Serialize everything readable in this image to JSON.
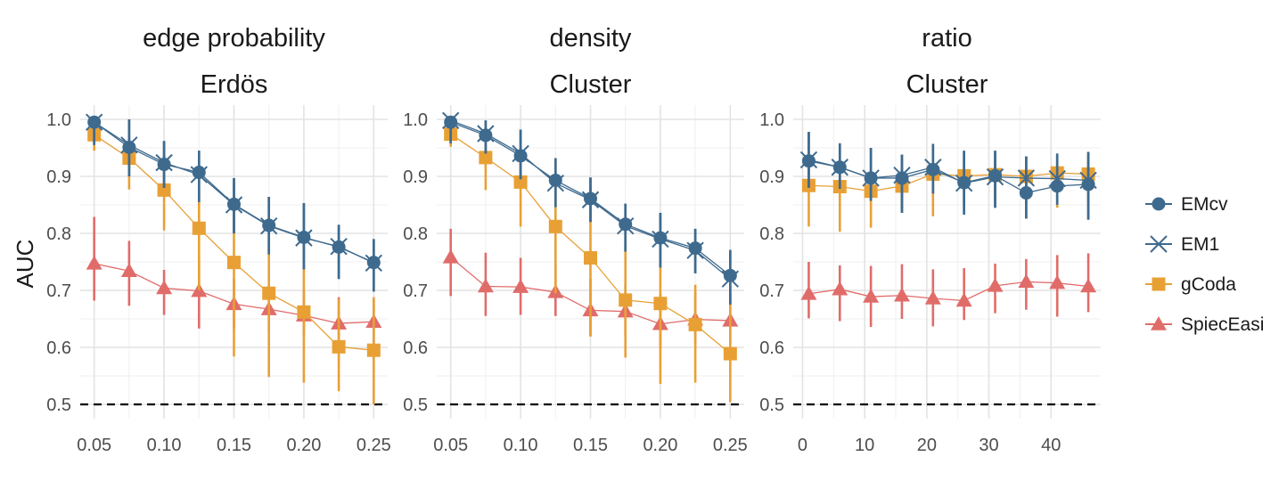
{
  "chart_data": {
    "type": "line",
    "ylabel": "AUC",
    "ylim": [
      0.5,
      1.0
    ],
    "y_ticks": [
      "0.5",
      "0.6",
      "0.7",
      "0.8",
      "0.9",
      "1.0"
    ],
    "reference_line": {
      "y": 0.5,
      "style": "dashed"
    },
    "grid": true,
    "legend_position": "right",
    "series_meta": [
      {
        "name": "EMcv",
        "color": "#3E6A8E",
        "marker": "circle"
      },
      {
        "name": "EM1",
        "color": "#3E6A8E",
        "marker": "x"
      },
      {
        "name": "gCoda",
        "color": "#E8A035",
        "marker": "square"
      },
      {
        "name": "SpiecEasi",
        "color": "#E06C6A",
        "marker": "triangle"
      }
    ],
    "panels": [
      {
        "title_top": "edge probability",
        "title_bottom": "Erdös",
        "xlim": [
          0.04,
          0.26
        ],
        "x_ticks": [
          "0.05",
          "0.10",
          "0.15",
          "0.20",
          "0.25"
        ],
        "x": [
          0.05,
          0.075,
          0.1,
          0.125,
          0.15,
          0.175,
          0.2,
          0.225,
          0.25
        ],
        "series": [
          {
            "name": "EMcv",
            "values": [
              0.995,
              0.951,
              0.921,
              0.907,
              0.851,
              0.814,
              0.793,
              0.776,
              0.749
            ],
            "lower": [
              0.955,
              0.9,
              0.88,
              0.855,
              0.8,
              0.763,
              0.737,
              0.72,
              0.698
            ],
            "upper": [
              1.0,
              1.0,
              0.962,
              0.945,
              0.897,
              0.864,
              0.853,
              0.815,
              0.79
            ]
          },
          {
            "name": "EM1",
            "values": [
              0.995,
              0.955,
              0.924,
              0.903,
              0.85,
              0.813,
              0.792,
              0.777,
              0.748
            ],
            "lower": [
              0.955,
              0.9,
              0.88,
              0.855,
              0.8,
              0.763,
              0.737,
              0.72,
              0.698
            ],
            "upper": [
              1.0,
              1.0,
              0.962,
              0.945,
              0.897,
              0.864,
              0.853,
              0.815,
              0.79
            ]
          },
          {
            "name": "gCoda",
            "values": [
              0.973,
              0.932,
              0.876,
              0.809,
              0.749,
              0.695,
              0.662,
              0.601,
              0.595
            ],
            "lower": [
              0.945,
              0.877,
              0.805,
              0.7,
              0.584,
              0.548,
              0.538,
              0.523,
              0.5
            ],
            "upper": [
              0.99,
              0.965,
              0.935,
              0.88,
              0.84,
              0.792,
              0.746,
              0.685,
              0.688
            ]
          },
          {
            "name": "SpiecEasi",
            "values": [
              0.747,
              0.734,
              0.704,
              0.699,
              0.676,
              0.667,
              0.656,
              0.642,
              0.645
            ],
            "lower": [
              0.682,
              0.673,
              0.657,
              0.633,
              0.633,
              0.627,
              0.62,
              0.6,
              0.6
            ],
            "upper": [
              0.829,
              0.787,
              0.736,
              0.753,
              0.72,
              0.708,
              0.7,
              0.688,
              0.685
            ]
          }
        ]
      },
      {
        "title_top": "density",
        "title_bottom": "Cluster",
        "xlim": [
          0.04,
          0.26
        ],
        "x_ticks": [
          "0.05",
          "0.10",
          "0.15",
          "0.20",
          "0.25"
        ],
        "x": [
          0.05,
          0.075,
          0.1,
          0.125,
          0.15,
          0.175,
          0.2,
          0.225,
          0.25
        ],
        "series": [
          {
            "name": "EMcv",
            "values": [
              0.995,
              0.972,
              0.936,
              0.893,
              0.861,
              0.816,
              0.792,
              0.774,
              0.726
            ],
            "lower": [
              0.958,
              0.94,
              0.895,
              0.846,
              0.82,
              0.768,
              0.74,
              0.73,
              0.675
            ],
            "upper": [
              1.0,
              0.998,
              0.982,
              0.932,
              0.898,
              0.852,
              0.836,
              0.808,
              0.771
            ]
          },
          {
            "name": "EM1",
            "values": [
              0.998,
              0.975,
              0.94,
              0.888,
              0.859,
              0.813,
              0.79,
              0.77,
              0.72
            ],
            "lower": [
              0.958,
              0.94,
              0.895,
              0.846,
              0.82,
              0.768,
              0.74,
              0.73,
              0.675
            ],
            "upper": [
              1.0,
              0.998,
              0.982,
              0.932,
              0.898,
              0.852,
              0.836,
              0.808,
              0.771
            ]
          },
          {
            "name": "gCoda",
            "values": [
              0.974,
              0.933,
              0.89,
              0.812,
              0.757,
              0.683,
              0.677,
              0.64,
              0.589
            ],
            "lower": [
              0.952,
              0.876,
              0.812,
              0.695,
              0.619,
              0.582,
              0.536,
              0.538,
              0.504
            ],
            "upper": [
              0.99,
              0.96,
              0.933,
              0.9,
              0.88,
              0.782,
              0.74,
              0.71,
              0.684
            ]
          },
          {
            "name": "SpiecEasi",
            "values": [
              0.758,
              0.707,
              0.706,
              0.697,
              0.665,
              0.663,
              0.641,
              0.649,
              0.647
            ],
            "lower": [
              0.69,
              0.655,
              0.657,
              0.655,
              0.62,
              0.62,
              0.598,
              0.608,
              0.606
            ],
            "upper": [
              0.808,
              0.766,
              0.757,
              0.745,
              0.72,
              0.712,
              0.695,
              0.697,
              0.694
            ]
          }
        ]
      },
      {
        "title_top": "ratio",
        "title_bottom": "Cluster",
        "xlim": [
          -1.5,
          48
        ],
        "x_ticks": [
          "0",
          "10",
          "20",
          "30",
          "40"
        ],
        "x": [
          1,
          6,
          11,
          16,
          21,
          26,
          31,
          36,
          41,
          46
        ],
        "series": [
          {
            "name": "EMcv",
            "values": [
              0.927,
              0.916,
              0.897,
              0.897,
              0.912,
              0.889,
              0.901,
              0.871,
              0.883,
              0.886
            ],
            "lower": [
              0.88,
              0.878,
              0.857,
              0.836,
              0.87,
              0.833,
              0.845,
              0.826,
              0.85,
              0.824
            ],
            "upper": [
              0.978,
              0.958,
              0.95,
              0.938,
              0.957,
              0.945,
              0.945,
              0.935,
              0.94,
              0.943
            ]
          },
          {
            "name": "EM1",
            "values": [
              0.929,
              0.916,
              0.897,
              0.902,
              0.916,
              0.888,
              0.899,
              0.897,
              0.896,
              0.893
            ],
            "lower": [
              0.88,
              0.878,
              0.857,
              0.836,
              0.87,
              0.833,
              0.845,
              0.826,
              0.85,
              0.824
            ],
            "upper": [
              0.978,
              0.958,
              0.95,
              0.938,
              0.957,
              0.945,
              0.945,
              0.935,
              0.94,
              0.943
            ]
          },
          {
            "name": "gCoda",
            "values": [
              0.884,
              0.882,
              0.874,
              0.883,
              0.904,
              0.901,
              0.903,
              0.9,
              0.906,
              0.904
            ],
            "lower": [
              0.812,
              0.803,
              0.81,
              0.845,
              0.83,
              0.85,
              0.858,
              0.85,
              0.845,
              0.855
            ],
            "upper": [
              0.918,
              0.93,
              0.9,
              0.918,
              0.92,
              0.935,
              0.93,
              0.935,
              0.935,
              0.935
            ]
          },
          {
            "name": "SpiecEasi",
            "values": [
              0.694,
              0.702,
              0.689,
              0.691,
              0.686,
              0.682,
              0.708,
              0.715,
              0.713,
              0.707
            ],
            "lower": [
              0.651,
              0.646,
              0.636,
              0.65,
              0.637,
              0.648,
              0.66,
              0.666,
              0.654,
              0.662
            ],
            "upper": [
              0.75,
              0.744,
              0.743,
              0.746,
              0.737,
              0.739,
              0.747,
              0.755,
              0.762,
              0.765
            ]
          }
        ]
      }
    ]
  }
}
